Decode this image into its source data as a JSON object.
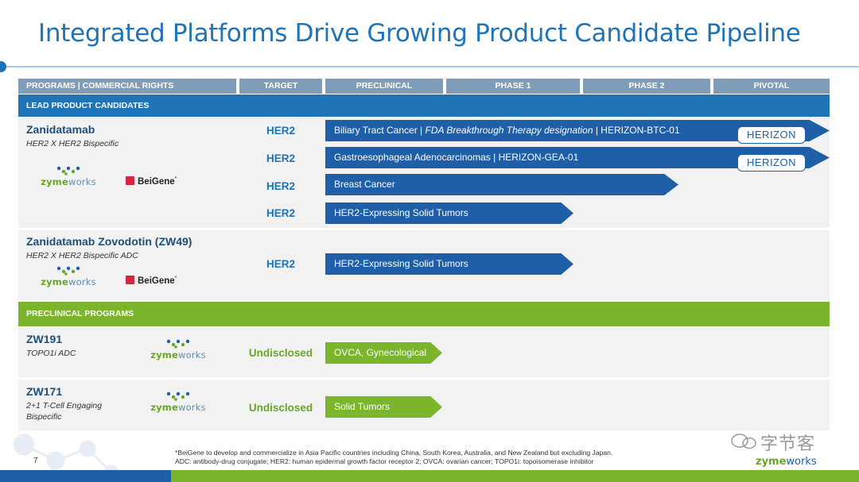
{
  "title": "Integrated Platforms Drive Growing Product Candidate Pipeline",
  "header": {
    "programs": "PROGRAMS | COMMERCIAL RIGHTS",
    "target": "TARGET",
    "preclinical": "PRECLINICAL",
    "phase1": "PHASE 1",
    "phase2": "PHASE 2",
    "pivotal": "PIVOTAL"
  },
  "sections": {
    "lead": "LEAD PRODUCT CANDIDATES",
    "preclinical": "PRECLINICAL PROGRAMS"
  },
  "zanidatamab": {
    "name": "Zanidatamab",
    "sub": "HER2 X HER2 Bispecific",
    "rows": [
      {
        "target": "HER2",
        "label_prefix": "Biliary Tract Cancer  |  ",
        "label_italic": "FDA Breakthrough Therapy designation",
        "label_suffix": " | HERIZON-BTC-01",
        "stage": "Pivotal",
        "trial_logo": "HERIZON"
      },
      {
        "target": "HER2",
        "label": "Gastroesophageal Adenocarcinomas | HERIZON-GEA-01",
        "stage": "Pivotal",
        "trial_logo": "HERIZON"
      },
      {
        "target": "HER2",
        "label": "Breast Cancer",
        "stage": "Phase 2"
      },
      {
        "target": "HER2",
        "label": "HER2-Expressing Solid Tumors",
        "stage": "Phase 1"
      }
    ]
  },
  "zw49": {
    "name": "Zanidatamab Zovodotin (ZW49)",
    "sub": "HER2 X HER2 Bispecific ADC",
    "target": "HER2",
    "label": "HER2-Expressing Solid Tumors",
    "stage": "Phase 1"
  },
  "zw191": {
    "name": "ZW191",
    "sub": "TOPO1i ADC",
    "target": "Undisclosed",
    "label": "OVCA, Gynecological",
    "stage": "Preclinical"
  },
  "zw171": {
    "name": "ZW171",
    "sub_line1": "2+1 T-Cell Engaging",
    "sub_line2": "Bispecific",
    "target": "Undisclosed",
    "label": "Solid Tumors",
    "stage": "Preclinical"
  },
  "logos": {
    "zymeworks_a": "zyme",
    "zymeworks_b": "works",
    "beigene": "BeiGene",
    "beigene_mark": "*"
  },
  "footnote": {
    "line1": "*BeiGene to develop and commercialize in Asia Pacific countries including China, South Korea, Australia, and New Zealand but excluding Japan.",
    "line2": "ADC: antibody-drug conjugate; HER2: human epidermal growth factor receptor 2; OVCA: ovarian cancer; TOPO1i: topoisomerase inhibitor"
  },
  "page_number": "7",
  "watermark": "字节客",
  "colors": {
    "primary_blue": "#1f73b7",
    "bar_blue": "#1f5fa8",
    "header_gray": "#7f9db9",
    "green": "#7ab52b"
  }
}
